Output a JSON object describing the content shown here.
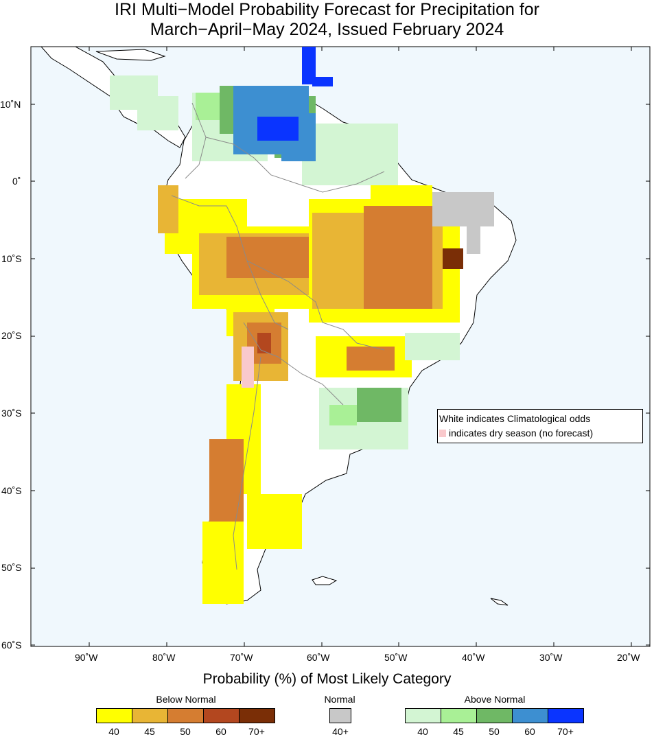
{
  "title": {
    "line1": "IRI Multi−Model Probability Forecast for Precipitation for",
    "line2": "March−April−May 2024, Issued February 2024"
  },
  "axes": {
    "lat_labels": [
      "10˚N",
      "0˚",
      "10˚S",
      "20˚S",
      "30˚S",
      "40˚S",
      "50˚S",
      "60˚S"
    ],
    "lon_labels": [
      "90˚W",
      "80˚W",
      "70˚W",
      "60˚W",
      "50˚W",
      "40˚W",
      "30˚W",
      "20˚W"
    ]
  },
  "note": {
    "line1": "White indicates Climatological odds",
    "line2": "indicates dry season (no forecast)"
  },
  "legend": {
    "title": "Probability (%) of Most Likely Category",
    "below": {
      "label": "Below Normal",
      "colors": [
        "#ffff00",
        "#e8b535",
        "#d57d31",
        "#b3471f",
        "#7a2e06"
      ],
      "ticks": [
        "40",
        "45",
        "50",
        "60",
        "70+"
      ]
    },
    "normal": {
      "label": "Normal",
      "color": "#c8c8c8",
      "tick": "40+"
    },
    "above": {
      "label": "Above Normal",
      "colors": [
        "#d3f5d3",
        "#a9f096",
        "#6fb865",
        "#3d8fd1",
        "#0a34ff"
      ],
      "ticks": [
        "40",
        "45",
        "50",
        "60",
        "70+"
      ]
    },
    "ocean_color": "#f0f8fd",
    "dry_color": "#f9c9cc"
  }
}
